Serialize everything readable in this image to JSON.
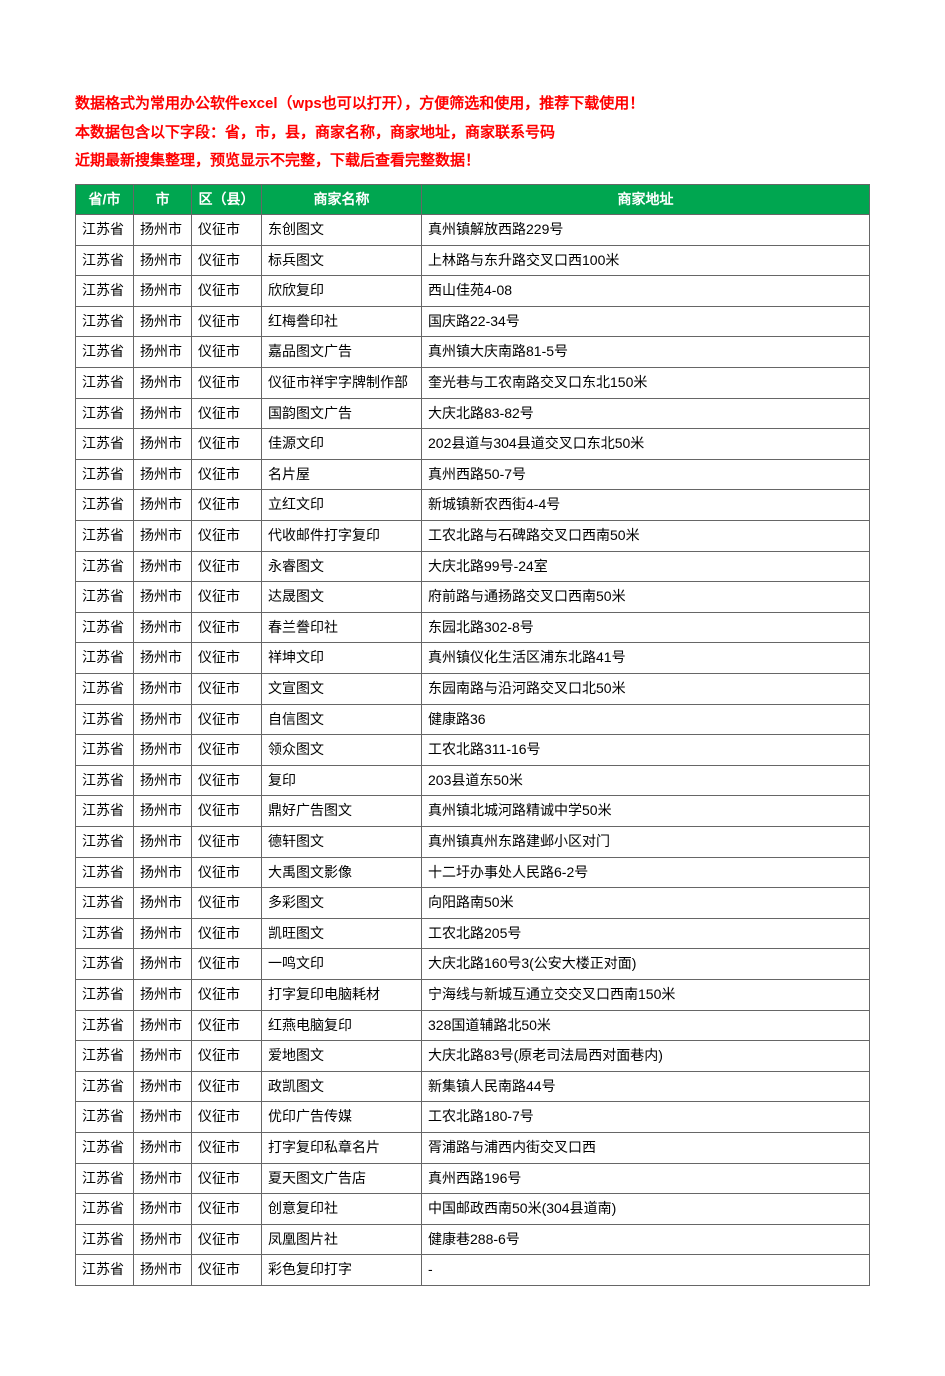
{
  "intro": {
    "line1": "数据格式为常用办公软件excel（wps也可以打开），方便筛选和使用，推荐下载使用！",
    "line2": "本数据包含以下字段：省，市，县，商家名称，商家地址，商家联系号码",
    "line3": "近期最新搜集整理，预览显示不完整，下载后查看完整数据！"
  },
  "table": {
    "header_bg": "#00a650",
    "header_color": "#ffffff",
    "border_color": "#666666",
    "columns": [
      "省/市",
      "市",
      "区（县）",
      "商家名称",
      "商家地址"
    ],
    "rows": [
      [
        "江苏省",
        "扬州市",
        "仪征市",
        "东创图文",
        "真州镇解放西路229号"
      ],
      [
        "江苏省",
        "扬州市",
        "仪征市",
        "标兵图文",
        "上林路与东升路交叉口西100米"
      ],
      [
        "江苏省",
        "扬州市",
        "仪征市",
        "欣欣复印",
        "西山佳苑4-08"
      ],
      [
        "江苏省",
        "扬州市",
        "仪征市",
        "红梅誊印社",
        "国庆路22-34号"
      ],
      [
        "江苏省",
        "扬州市",
        "仪征市",
        "嘉品图文广告",
        "真州镇大庆南路81-5号"
      ],
      [
        "江苏省",
        "扬州市",
        "仪征市",
        "仪征市祥宇字牌制作部",
        "奎光巷与工农南路交叉口东北150米"
      ],
      [
        "江苏省",
        "扬州市",
        "仪征市",
        "国韵图文广告",
        "大庆北路83-82号"
      ],
      [
        "江苏省",
        "扬州市",
        "仪征市",
        "佳源文印",
        "202县道与304县道交叉口东北50米"
      ],
      [
        "江苏省",
        "扬州市",
        "仪征市",
        "名片屋",
        "真州西路50-7号"
      ],
      [
        "江苏省",
        "扬州市",
        "仪征市",
        "立红文印",
        "新城镇新农西街4-4号"
      ],
      [
        "江苏省",
        "扬州市",
        "仪征市",
        "代收邮件打字复印",
        "工农北路与石碑路交叉口西南50米"
      ],
      [
        "江苏省",
        "扬州市",
        "仪征市",
        "永睿图文",
        "大庆北路99号-24室"
      ],
      [
        "江苏省",
        "扬州市",
        "仪征市",
        "达晟图文",
        "府前路与通扬路交叉口西南50米"
      ],
      [
        "江苏省",
        "扬州市",
        "仪征市",
        "春兰誊印社",
        "东园北路302-8号"
      ],
      [
        "江苏省",
        "扬州市",
        "仪征市",
        "祥坤文印",
        "真州镇仪化生活区浦东北路41号"
      ],
      [
        "江苏省",
        "扬州市",
        "仪征市",
        "文宣图文",
        "东园南路与沿河路交叉口北50米"
      ],
      [
        "江苏省",
        "扬州市",
        "仪征市",
        "自信图文",
        "健康路36"
      ],
      [
        "江苏省",
        "扬州市",
        "仪征市",
        "领众图文",
        "工农北路311-16号"
      ],
      [
        "江苏省",
        "扬州市",
        "仪征市",
        "复印",
        "203县道东50米"
      ],
      [
        "江苏省",
        "扬州市",
        "仪征市",
        "鼎好广告图文",
        "真州镇北城河路精诚中学50米"
      ],
      [
        "江苏省",
        "扬州市",
        "仪征市",
        "德轩图文",
        "真州镇真州东路建邺小区对门"
      ],
      [
        "江苏省",
        "扬州市",
        "仪征市",
        "大禹图文影像",
        "十二圩办事处人民路6-2号"
      ],
      [
        "江苏省",
        "扬州市",
        "仪征市",
        "多彩图文",
        "向阳路南50米"
      ],
      [
        "江苏省",
        "扬州市",
        "仪征市",
        "凯旺图文",
        "工农北路205号"
      ],
      [
        "江苏省",
        "扬州市",
        "仪征市",
        "一鸣文印",
        "大庆北路160号3(公安大楼正对面)"
      ],
      [
        "江苏省",
        "扬州市",
        "仪征市",
        "打字复印电脑耗材",
        "宁海线与新城互通立交交叉口西南150米"
      ],
      [
        "江苏省",
        "扬州市",
        "仪征市",
        "红燕电脑复印",
        "328国道辅路北50米"
      ],
      [
        "江苏省",
        "扬州市",
        "仪征市",
        "爱地图文",
        "大庆北路83号(原老司法局西对面巷内)"
      ],
      [
        "江苏省",
        "扬州市",
        "仪征市",
        "政凯图文",
        "新集镇人民南路44号"
      ],
      [
        "江苏省",
        "扬州市",
        "仪征市",
        "优印广告传媒",
        "工农北路180-7号"
      ],
      [
        "江苏省",
        "扬州市",
        "仪征市",
        "打字复印私章名片",
        "胥浦路与浦西内街交叉口西"
      ],
      [
        "江苏省",
        "扬州市",
        "仪征市",
        "夏天图文广告店",
        "真州西路196号"
      ],
      [
        "江苏省",
        "扬州市",
        "仪征市",
        "创意复印社",
        "中国邮政西南50米(304县道南)"
      ],
      [
        "江苏省",
        "扬州市",
        "仪征市",
        "凤凰图片社",
        "健康巷288-6号"
      ],
      [
        "江苏省",
        "扬州市",
        "仪征市",
        "彩色复印打字",
        "-"
      ]
    ]
  }
}
